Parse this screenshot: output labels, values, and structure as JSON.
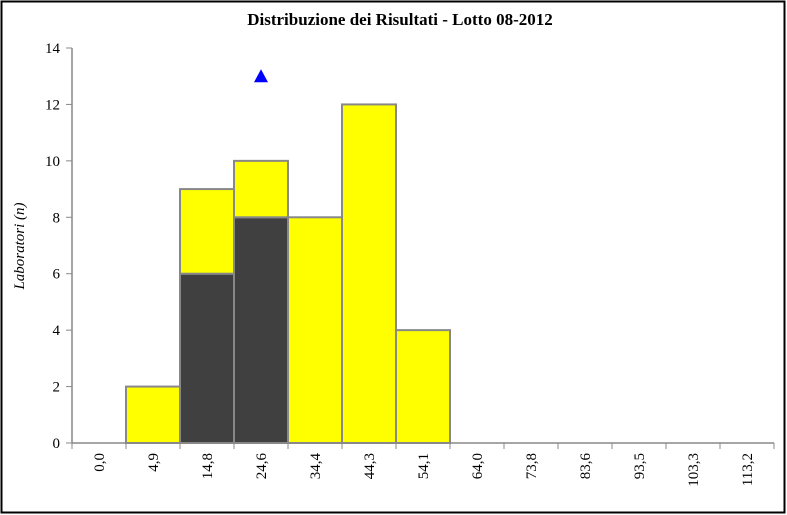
{
  "chart_data": {
    "type": "bar",
    "stacked": true,
    "title": "Distribuzione dei Risultati  - Lotto 08-2012",
    "y_label": "Laboratori (n)",
    "categories": [
      "0,0",
      "4,9",
      "14,8",
      "24,6",
      "34,4",
      "44,3",
      "54,1",
      "64,0",
      "73,8",
      "83,6",
      "93,5",
      "103,3",
      "113,2"
    ],
    "series": [
      {
        "color": "#404040",
        "values": [
          0,
          0,
          6,
          8,
          0,
          0,
          0,
          0,
          0,
          0,
          0,
          0,
          0
        ]
      },
      {
        "color": "#ffff00",
        "values": [
          0,
          2,
          3,
          2,
          8,
          12,
          4,
          0,
          0,
          0,
          0,
          0,
          0
        ]
      },
      {
        "type": "marker",
        "color": "#0000ff",
        "values": [
          null,
          null,
          null,
          13,
          null,
          null,
          null,
          null,
          null,
          null,
          null,
          null,
          null
        ]
      }
    ],
    "ylim": [
      0,
      14
    ],
    "yticks": [
      0,
      2,
      4,
      6,
      8,
      10,
      12,
      14
    ]
  }
}
